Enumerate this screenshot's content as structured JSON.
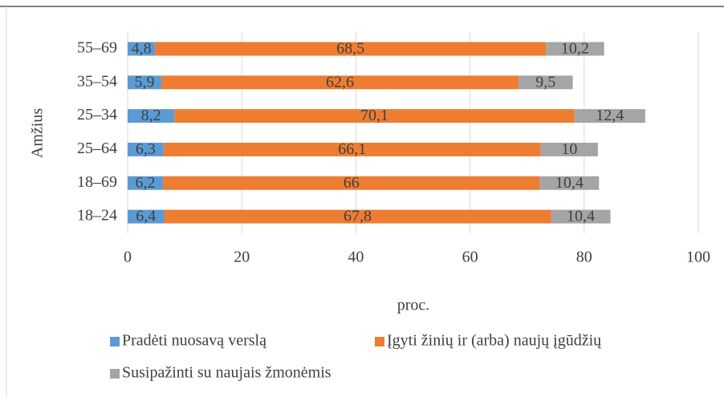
{
  "chart_data": {
    "type": "stacked_barh",
    "categories": [
      "18–24",
      "18–69",
      "25–64",
      "25–34",
      "35–54",
      "55–69"
    ],
    "series": [
      {
        "name": "Pradėti nuosavą verslą",
        "color": "#5b9bd5",
        "values": [
          6.4,
          6.2,
          6.3,
          8.2,
          5.9,
          4.8
        ],
        "value_labels": [
          "6,4",
          "6,2",
          "6,3",
          "8,2",
          "5,9",
          "4,8"
        ]
      },
      {
        "name": "Įgyti žinių ir (arba) naujų įgūdžių",
        "color": "#ed7d31",
        "values": [
          67.8,
          66,
          66.1,
          70.1,
          62.6,
          68.5
        ],
        "value_labels": [
          "67,8",
          "66",
          "66,1",
          "70,1",
          "62,6",
          "68,5"
        ]
      },
      {
        "name": "Susipažinti su naujais žmonėmis",
        "color": "#a5a5a5",
        "values": [
          10.4,
          10.4,
          10,
          12.4,
          9.5,
          10.2
        ],
        "value_labels": [
          "10,4",
          "10,4",
          "10",
          "12,4",
          "9,5",
          "10,2"
        ]
      }
    ],
    "xlabel": "proc.",
    "ylabel": "Amžius",
    "xlim": [
      0,
      100
    ],
    "xticks": [
      0,
      20,
      40,
      60,
      80,
      100
    ],
    "grid": true,
    "legend": "bottom"
  }
}
